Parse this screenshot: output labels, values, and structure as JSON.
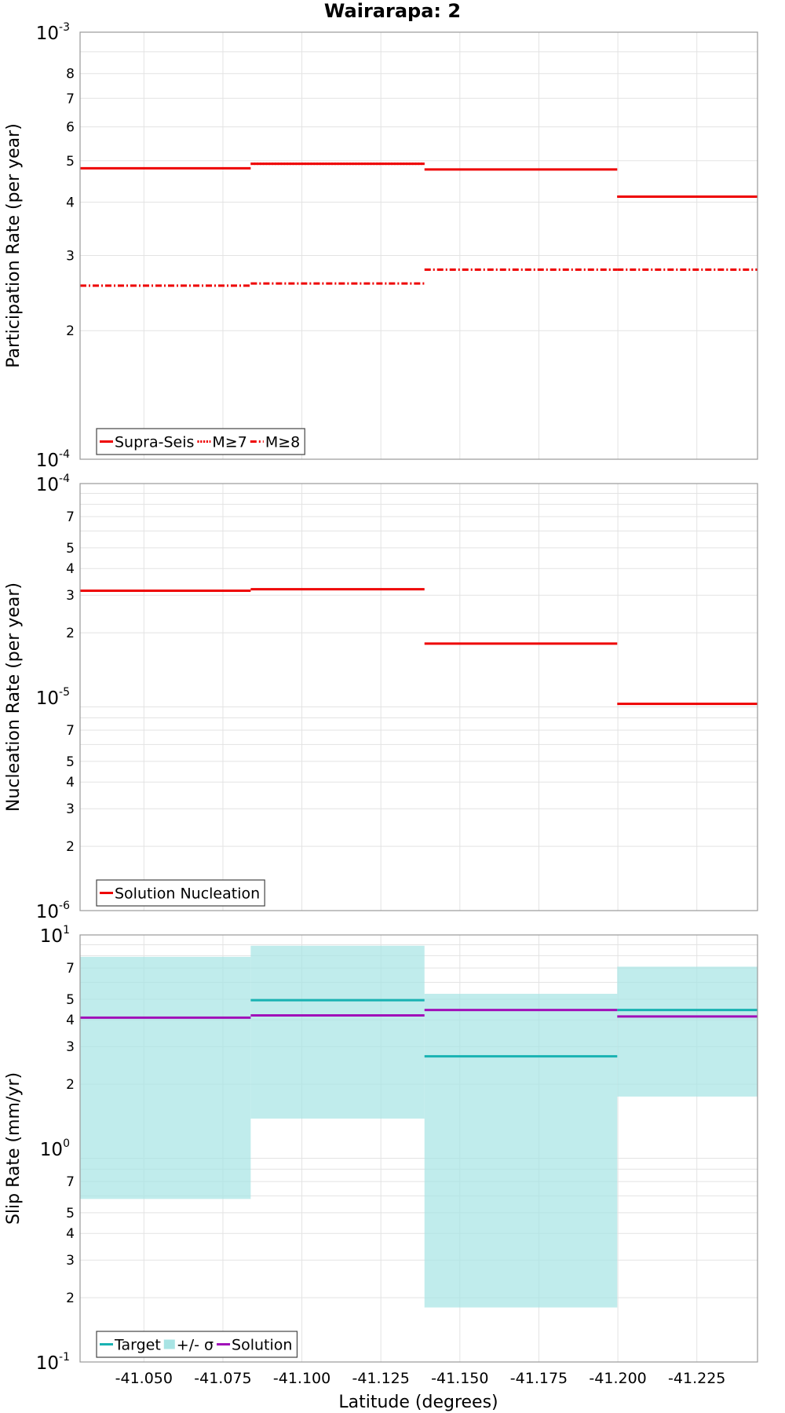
{
  "title": "Wairarapa: 2",
  "xlabel": "Latitude (degrees)",
  "colors": {
    "supra": "#ee0000",
    "target": "#18b2b2",
    "band": "#a8e4e4",
    "solution": "#a010b8",
    "grid": "#e3e3e3",
    "frame": "#9a9a9a"
  },
  "chart_data": [
    {
      "type": "line",
      "name": "participation",
      "ylabel": "Participation Rate (per year)",
      "yscale": "log",
      "ylim": [
        0.0001,
        0.001
      ],
      "xlim": [
        -41.0298,
        -41.2442
      ],
      "x_ticks": [
        -41.05,
        -41.075,
        -41.1,
        -41.125,
        -41.15,
        -41.175,
        -41.2,
        -41.225
      ],
      "y_major_ticks": [
        {
          "value": 0.0001,
          "base": "10",
          "exp": "-4"
        },
        {
          "value": 0.001,
          "base": "10",
          "exp": "-3"
        }
      ],
      "y_minor_ticks": [
        {
          "value": 0.0002,
          "label": "2"
        },
        {
          "value": 0.0003,
          "label": "3"
        },
        {
          "value": 0.0004,
          "label": "4"
        },
        {
          "value": 0.0005,
          "label": "5"
        },
        {
          "value": 0.0006,
          "label": "6"
        },
        {
          "value": 0.0007,
          "label": "7"
        },
        {
          "value": 0.0008,
          "label": "8"
        }
      ],
      "y_grid": [
        0.0002,
        0.0003,
        0.0004,
        0.0005,
        0.0006,
        0.0007,
        0.0008,
        0.0009
      ],
      "series": [
        {
          "name": "Supra-Seis",
          "style": "solid",
          "segments": [
            {
              "x": [
                -41.0298,
                -41.0838
              ],
              "y": 0.00048
            },
            {
              "x": [
                -41.0838,
                -41.1388
              ],
              "y": 0.000492
            },
            {
              "x": [
                -41.1388,
                -41.1998
              ],
              "y": 0.000477
            },
            {
              "x": [
                -41.1998,
                -41.2442
              ],
              "y": 0.000412
            }
          ]
        },
        {
          "name": "M≥7",
          "style": "dotted",
          "segments": [
            {
              "x": [
                -41.0838,
                -41.1388
              ],
              "y": 0.000492
            },
            {
              "x": [
                -41.1998,
                -41.2442
              ],
              "y": 0.000412
            }
          ]
        },
        {
          "name": "M≥8",
          "style": "dashdot",
          "segments": [
            {
              "x": [
                -41.0298,
                -41.0838
              ],
              "y": 0.000255
            },
            {
              "x": [
                -41.0838,
                -41.1388
              ],
              "y": 0.000258
            },
            {
              "x": [
                -41.1388,
                -41.1998
              ],
              "y": 0.000278
            },
            {
              "x": [
                -41.1998,
                -41.2442
              ],
              "y": 0.000278
            }
          ]
        }
      ],
      "legend": {
        "placement": "bottom-left",
        "entries": [
          {
            "label": "Supra-Seis",
            "kind": "solid"
          },
          {
            "label": "M≥7",
            "kind": "dotted"
          },
          {
            "label": "M≥8",
            "kind": "dashdot"
          }
        ]
      }
    },
    {
      "type": "line",
      "name": "nucleation",
      "ylabel": "Nucleation Rate (per year)",
      "yscale": "log",
      "ylim": [
        1e-06,
        0.0001
      ],
      "xlim": [
        -41.0298,
        -41.2442
      ],
      "x_ticks": [
        -41.05,
        -41.075,
        -41.1,
        -41.125,
        -41.15,
        -41.175,
        -41.2,
        -41.225
      ],
      "y_major_ticks": [
        {
          "value": 1e-06,
          "base": "10",
          "exp": "-6"
        },
        {
          "value": 1e-05,
          "base": "10",
          "exp": "-5"
        },
        {
          "value": 0.0001,
          "base": "10",
          "exp": "-4"
        }
      ],
      "y_minor_ticks": [
        {
          "value": 2e-06,
          "label": "2"
        },
        {
          "value": 3e-06,
          "label": "3"
        },
        {
          "value": 4e-06,
          "label": "4"
        },
        {
          "value": 5e-06,
          "label": "5"
        },
        {
          "value": 7e-06,
          "label": "7"
        },
        {
          "value": 2e-05,
          "label": "2"
        },
        {
          "value": 3e-05,
          "label": "3"
        },
        {
          "value": 4e-05,
          "label": "4"
        },
        {
          "value": 5e-05,
          "label": "5"
        },
        {
          "value": 7e-05,
          "label": "7"
        }
      ],
      "y_grid": [
        2e-06,
        3e-06,
        4e-06,
        5e-06,
        6e-06,
        7e-06,
        8e-06,
        9e-06,
        2e-05,
        3e-05,
        4e-05,
        5e-05,
        6e-05,
        7e-05,
        8e-05,
        9e-05
      ],
      "series": [
        {
          "name": "Solution Nucleation",
          "style": "solid",
          "segments": [
            {
              "x": [
                -41.0298,
                -41.0838
              ],
              "y": 3.15e-05
            },
            {
              "x": [
                -41.0838,
                -41.1388
              ],
              "y": 3.2e-05
            },
            {
              "x": [
                -41.1388,
                -41.1998
              ],
              "y": 1.78e-05
            },
            {
              "x": [
                -41.1998,
                -41.2442
              ],
              "y": 9.3e-06
            }
          ]
        }
      ],
      "legend": {
        "placement": "bottom-left",
        "entries": [
          {
            "label": "Solution Nucleation",
            "kind": "solid"
          }
        ]
      }
    },
    {
      "type": "line",
      "name": "sliprate",
      "ylabel": "Slip Rate (mm/yr)",
      "yscale": "log",
      "ylim": [
        0.1,
        10
      ],
      "xlim": [
        -41.0298,
        -41.2442
      ],
      "x_ticks": [
        -41.05,
        -41.075,
        -41.1,
        -41.125,
        -41.15,
        -41.175,
        -41.2,
        -41.225
      ],
      "y_major_ticks": [
        {
          "value": 0.1,
          "base": "10",
          "exp": "-1"
        },
        {
          "value": 1,
          "base": "10",
          "exp": "0"
        },
        {
          "value": 10,
          "base": "10",
          "exp": "1"
        }
      ],
      "y_minor_ticks": [
        {
          "value": 0.2,
          "label": "2"
        },
        {
          "value": 0.3,
          "label": "3"
        },
        {
          "value": 0.4,
          "label": "4"
        },
        {
          "value": 0.5,
          "label": "5"
        },
        {
          "value": 0.7,
          "label": "7"
        },
        {
          "value": 2,
          "label": "2"
        },
        {
          "value": 3,
          "label": "3"
        },
        {
          "value": 4,
          "label": "4"
        },
        {
          "value": 5,
          "label": "5"
        },
        {
          "value": 7,
          "label": "7"
        }
      ],
      "y_grid": [
        0.2,
        0.3,
        0.4,
        0.5,
        0.6,
        0.7,
        0.8,
        0.9,
        2,
        3,
        4,
        5,
        6,
        7,
        8,
        9
      ],
      "bands": [
        {
          "x": [
            -41.0298,
            -41.0838
          ],
          "low": 0.58,
          "high": 7.9
        },
        {
          "x": [
            -41.0838,
            -41.1388
          ],
          "low": 1.38,
          "high": 8.9
        },
        {
          "x": [
            -41.1388,
            -41.1998
          ],
          "low": 0.18,
          "high": 5.3
        },
        {
          "x": [
            -41.1998,
            -41.2442
          ],
          "low": 1.75,
          "high": 7.1
        }
      ],
      "series": [
        {
          "name": "Target",
          "style": "solid",
          "segments": [
            {
              "x": [
                -41.0838,
                -41.1388
              ],
              "y": 4.95
            },
            {
              "x": [
                -41.1388,
                -41.1998
              ],
              "y": 2.7
            },
            {
              "x": [
                -41.1998,
                -41.2442
              ],
              "y": 4.45
            }
          ]
        },
        {
          "name": "Solution",
          "style": "solid",
          "segments": [
            {
              "x": [
                -41.0298,
                -41.0838
              ],
              "y": 4.1
            },
            {
              "x": [
                -41.0838,
                -41.1388
              ],
              "y": 4.2
            },
            {
              "x": [
                -41.1388,
                -41.1998
              ],
              "y": 4.45
            },
            {
              "x": [
                -41.1998,
                -41.2442
              ],
              "y": 4.15
            }
          ]
        }
      ],
      "legend": {
        "placement": "bottom-left",
        "entries": [
          {
            "label": "Target",
            "kind": "solid"
          },
          {
            "label": "+/- σ",
            "kind": "band"
          },
          {
            "label": "Solution",
            "kind": "solid"
          }
        ]
      }
    }
  ]
}
